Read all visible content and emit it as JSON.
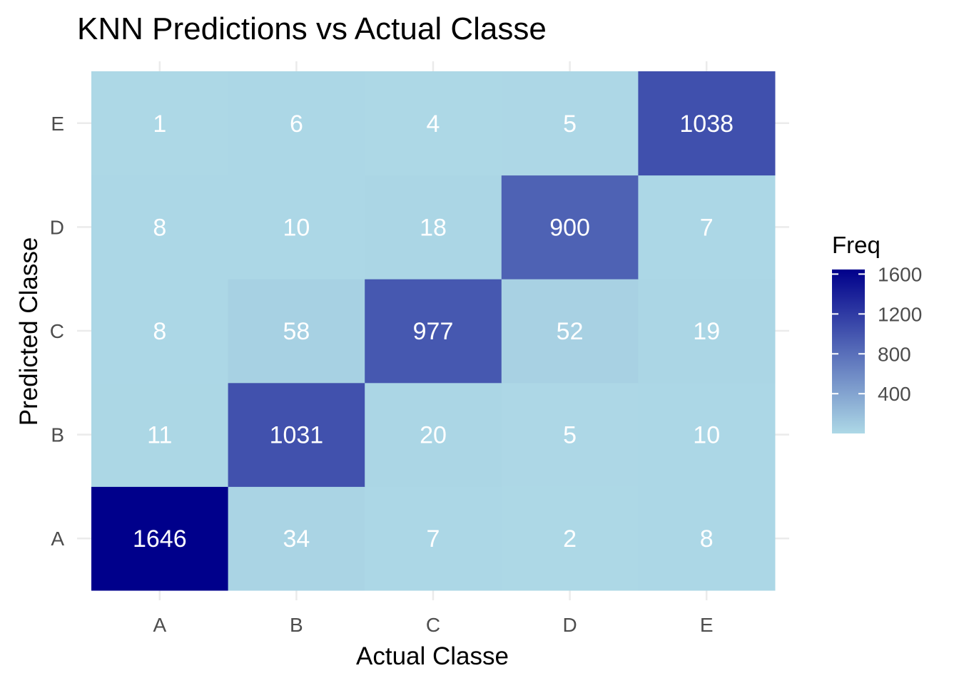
{
  "chart_data": {
    "type": "heatmap",
    "title": "KNN Predictions vs Actual Classe",
    "xlabel": "Actual Classe",
    "ylabel": "Predicted Classe",
    "x_categories": [
      "A",
      "B",
      "C",
      "D",
      "E"
    ],
    "y_categories": [
      "A",
      "B",
      "C",
      "D",
      "E"
    ],
    "cells": [
      {
        "actual": "A",
        "predicted": "A",
        "value": 1646
      },
      {
        "actual": "B",
        "predicted": "A",
        "value": 34
      },
      {
        "actual": "C",
        "predicted": "A",
        "value": 7
      },
      {
        "actual": "D",
        "predicted": "A",
        "value": 2
      },
      {
        "actual": "E",
        "predicted": "A",
        "value": 8
      },
      {
        "actual": "A",
        "predicted": "B",
        "value": 11
      },
      {
        "actual": "B",
        "predicted": "B",
        "value": 1031
      },
      {
        "actual": "C",
        "predicted": "B",
        "value": 20
      },
      {
        "actual": "D",
        "predicted": "B",
        "value": 5
      },
      {
        "actual": "E",
        "predicted": "B",
        "value": 10
      },
      {
        "actual": "A",
        "predicted": "C",
        "value": 8
      },
      {
        "actual": "B",
        "predicted": "C",
        "value": 58
      },
      {
        "actual": "C",
        "predicted": "C",
        "value": 977
      },
      {
        "actual": "D",
        "predicted": "C",
        "value": 52
      },
      {
        "actual": "E",
        "predicted": "C",
        "value": 19
      },
      {
        "actual": "A",
        "predicted": "D",
        "value": 8
      },
      {
        "actual": "B",
        "predicted": "D",
        "value": 10
      },
      {
        "actual": "C",
        "predicted": "D",
        "value": 18
      },
      {
        "actual": "D",
        "predicted": "D",
        "value": 900
      },
      {
        "actual": "E",
        "predicted": "D",
        "value": 7
      },
      {
        "actual": "A",
        "predicted": "E",
        "value": 1
      },
      {
        "actual": "B",
        "predicted": "E",
        "value": 6
      },
      {
        "actual": "C",
        "predicted": "E",
        "value": 4
      },
      {
        "actual": "D",
        "predicted": "E",
        "value": 5
      },
      {
        "actual": "E",
        "predicted": "E",
        "value": 1038
      }
    ],
    "legend": {
      "title": "Freq",
      "placement": "right",
      "ticks": [
        400,
        800,
        1200,
        1600
      ],
      "range": [
        1,
        1646
      ]
    },
    "colors": {
      "low": "#add8e6",
      "high": "#00008b",
      "cell_text": "#ffffff",
      "grid": "#ebebeb",
      "axis_text": "#4d4d4d",
      "title_text": "#000000"
    },
    "grid": true
  }
}
